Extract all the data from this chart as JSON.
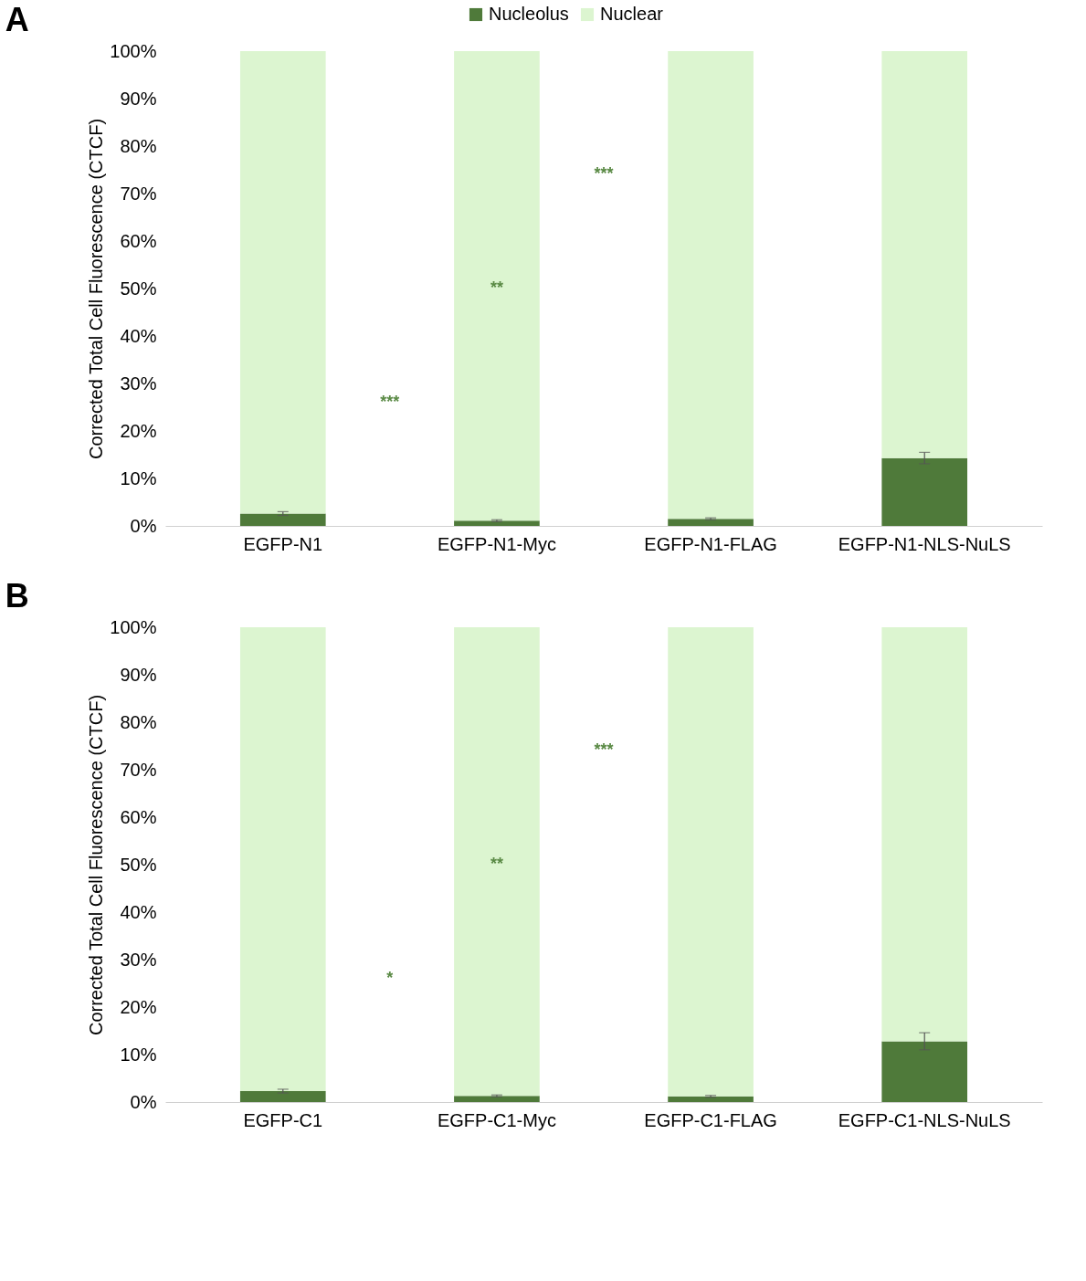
{
  "chart_data": [
    {
      "type": "bar",
      "title": "A",
      "stacked": true,
      "legend": "top",
      "grid": false,
      "ylabel": "Corrected Total Cell Fluorescence (CTCF)",
      "categories": [
        "EGFP-N1",
        "EGFP-N1-Myc",
        "EGFP-N1-FLAG",
        "EGFP-N1-NLS-NuLS"
      ],
      "series": [
        {
          "name": "Nucleolus",
          "color": "#4f7a3a",
          "values": [
            2.6,
            1.1,
            1.5,
            14.3
          ],
          "errors": [
            0.4,
            0.2,
            0.2,
            1.2
          ]
        },
        {
          "name": "Nuclear",
          "color": "#dcf5d0",
          "values": [
            97.4,
            98.9,
            98.5,
            85.7
          ]
        }
      ],
      "ylim": [
        0,
        100
      ],
      "yticks": [
        {
          "value": 0,
          "label": "0%"
        },
        {
          "value": 10,
          "label": "10%"
        },
        {
          "value": 20,
          "label": "20%"
        },
        {
          "value": 30,
          "label": "30%"
        },
        {
          "value": 40,
          "label": "40%"
        },
        {
          "value": 50,
          "label": "50%"
        },
        {
          "value": 60,
          "label": "60%"
        },
        {
          "value": 70,
          "label": "70%"
        },
        {
          "value": 80,
          "label": "80%"
        },
        {
          "value": 90,
          "label": "90%"
        },
        {
          "value": 100,
          "label": "100%"
        }
      ],
      "annotations": [
        "***",
        "**",
        "***"
      ]
    },
    {
      "type": "bar",
      "title": "B",
      "stacked": true,
      "legend": "top",
      "grid": false,
      "ylabel": "Corrected Total Cell Fluorescence (CTCF)",
      "categories": [
        "EGFP-C1",
        "EGFP-C1-Myc",
        "EGFP-C1-FLAG",
        "EGFP-C1-NLS-NuLS"
      ],
      "series": [
        {
          "name": "Nucleolus",
          "color": "#4f7a3a",
          "values": [
            2.3,
            1.3,
            1.2,
            12.8
          ],
          "errors": [
            0.4,
            0.2,
            0.2,
            1.8
          ]
        },
        {
          "name": "Nuclear",
          "color": "#dcf5d0",
          "values": [
            97.7,
            98.7,
            98.8,
            87.2
          ]
        }
      ],
      "ylim": [
        0,
        100
      ],
      "yticks": [
        {
          "value": 0,
          "label": "0%"
        },
        {
          "value": 10,
          "label": "10%"
        },
        {
          "value": 20,
          "label": "20%"
        },
        {
          "value": 30,
          "label": "30%"
        },
        {
          "value": 40,
          "label": "40%"
        },
        {
          "value": 50,
          "label": "50%"
        },
        {
          "value": 60,
          "label": "60%"
        },
        {
          "value": 70,
          "label": "70%"
        },
        {
          "value": 80,
          "label": "80%"
        },
        {
          "value": 90,
          "label": "90%"
        },
        {
          "value": 100,
          "label": "100%"
        }
      ],
      "annotations": [
        "*",
        "**",
        "***"
      ]
    }
  ]
}
